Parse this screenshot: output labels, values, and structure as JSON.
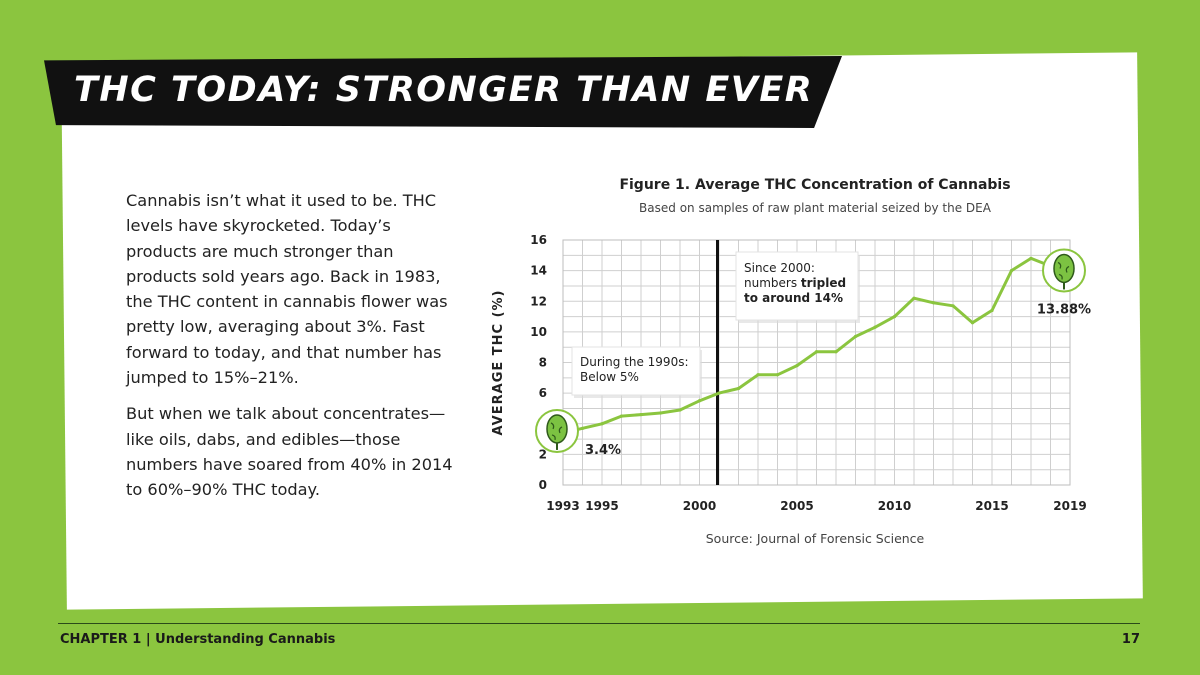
{
  "page": {
    "title": "THC TODAY: STRONGER THAN EVER",
    "paragraphs": [
      "Cannabis isn’t what it used to be. THC levels have skyrocketed. Today’s products are much stronger than products sold years ago. Back in 1983, the THC content in cannabis flower was pretty low, averaging about 3%. Fast forward to today, and that number has jumped to 15%–21%.",
      "But when we talk about concentrates—like oils, dabs, and edibles—those numbers have soared from 40% in 2014 to 60%–90% THC today."
    ]
  },
  "chart_data": {
    "type": "line",
    "title": "Figure 1. Average THC Concentration of Cannabis",
    "subtitle": "Based on samples of raw plant material seized by the DEA",
    "source": "Source: Journal of Forensic Science",
    "ylabel": "AVERAGE THC (%)",
    "xlabel": "",
    "xlim": [
      1993,
      2019
    ],
    "ylim": [
      0,
      16
    ],
    "x_ticks": [
      "1993",
      "1995",
      "2000",
      "2005",
      "2010",
      "2015",
      "2019"
    ],
    "y_ticks": [
      "0",
      "2",
      "4",
      "6",
      "8",
      "10",
      "12",
      "14",
      "16"
    ],
    "grid": true,
    "series": [
      {
        "color": "#8bc53f",
        "x": [
          1993,
          1994,
          1995,
          1996,
          1997,
          1998,
          1999,
          2000,
          2001,
          2002,
          2003,
          2004,
          2005,
          2006,
          2007,
          2008,
          2009,
          2010,
          2011,
          2012,
          2013,
          2014,
          2015,
          2016,
          2017,
          2018,
          2019
        ],
        "y": [
          3.4,
          3.7,
          4.0,
          4.5,
          4.6,
          4.7,
          4.9,
          5.5,
          6.0,
          6.3,
          7.2,
          7.2,
          7.8,
          8.7,
          8.7,
          9.7,
          10.3,
          11.0,
          12.2,
          11.9,
          11.7,
          10.6,
          11.4,
          14.0,
          14.8,
          14.3,
          13.88
        ]
      }
    ],
    "vertical_marker": {
      "x": 2000,
      "color": "#111111"
    },
    "annotations": [
      {
        "text": "During the 1990s: Below 5%",
        "lines": [
          "During the 1990s:",
          "Below 5%"
        ]
      },
      {
        "text": "Since 2000: numbers tripled to around 14%",
        "lines": [
          "Since 2000:",
          "numbers ",
          "tripled",
          "to around 14%"
        ]
      }
    ],
    "point_labels": [
      {
        "x": 1993,
        "y": 3.4,
        "text": "3.4%"
      },
      {
        "x": 2019,
        "y": 13.88,
        "text": "13.88%"
      }
    ],
    "accent_color": "#8bc53f"
  },
  "footer": {
    "chapter": "CHAPTER 1 | Understanding Cannabis",
    "page_number": "17"
  }
}
